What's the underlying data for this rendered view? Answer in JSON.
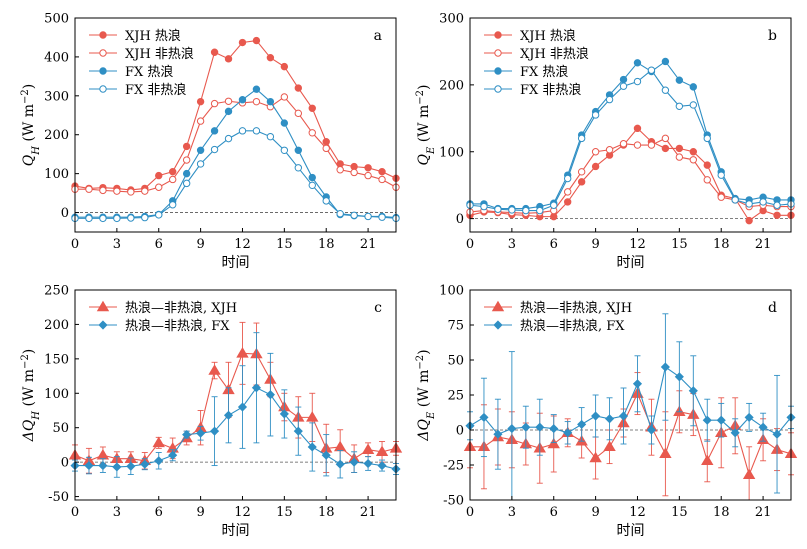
{
  "colors": {
    "xjh": "#e8594e",
    "fx": "#2f8fc4",
    "zero_line": "#555555"
  },
  "chart_data": [
    {
      "panel": "a",
      "type": "line",
      "ylabel_main": "Q",
      "ylabel_sub": "H",
      "ylabel_unit": " (W m",
      "ylabel_exp": "−2",
      "ylabel_close": ")",
      "xlabel": "时间",
      "xlim": [
        0,
        23
      ],
      "ylim": [
        -50,
        500
      ],
      "xticks": [
        0,
        3,
        6,
        9,
        12,
        15,
        18,
        21
      ],
      "yticks": [
        0,
        100,
        200,
        300,
        400,
        500
      ],
      "legend": "top-left",
      "x": [
        0,
        1,
        2,
        3,
        4,
        5,
        6,
        7,
        8,
        9,
        10,
        11,
        12,
        13,
        14,
        15,
        16,
        17,
        18,
        19,
        20,
        21,
        22,
        23
      ],
      "series": [
        {
          "name": "XJH 热浪",
          "color": "xjh",
          "marker": "filled-circle",
          "values": [
            68,
            62,
            64,
            62,
            58,
            62,
            95,
            105,
            170,
            285,
            412,
            395,
            437,
            442,
            398,
            375,
            320,
            268,
            182,
            125,
            118,
            115,
            105,
            88
          ]
        },
        {
          "name": "XJH 非热浪",
          "color": "xjh",
          "marker": "open-circle",
          "values": [
            60,
            60,
            57,
            55,
            53,
            55,
            65,
            85,
            135,
            235,
            280,
            286,
            282,
            285,
            272,
            297,
            255,
            205,
            165,
            110,
            103,
            95,
            85,
            65
          ]
        },
        {
          "name": "FX 热浪",
          "color": "fx",
          "marker": "filled-circle",
          "values": [
            -12,
            -12,
            -12,
            -12,
            -12,
            -10,
            -5,
            30,
            100,
            160,
            210,
            260,
            290,
            317,
            285,
            230,
            160,
            90,
            40,
            -5,
            -8,
            -10,
            -10,
            -13
          ]
        },
        {
          "name": "FX 非热浪",
          "color": "fx",
          "marker": "open-circle",
          "values": [
            -15,
            -15,
            -15,
            -15,
            -14,
            -13,
            -6,
            20,
            75,
            125,
            162,
            190,
            210,
            210,
            195,
            160,
            115,
            70,
            30,
            -3,
            -7,
            -10,
            -12,
            -15
          ]
        }
      ]
    },
    {
      "panel": "b",
      "type": "line",
      "ylabel_main": "Q",
      "ylabel_sub": "E",
      "ylabel_unit": " (W m",
      "ylabel_exp": "−2",
      "ylabel_close": ")",
      "xlabel": "时间",
      "xlim": [
        0,
        23
      ],
      "ylim": [
        -20,
        300
      ],
      "xticks": [
        0,
        3,
        6,
        9,
        12,
        15,
        18,
        21
      ],
      "yticks": [
        0,
        100,
        200,
        300
      ],
      "legend": "top-left",
      "x": [
        0,
        1,
        2,
        3,
        4,
        5,
        6,
        7,
        8,
        9,
        10,
        11,
        12,
        13,
        14,
        15,
        16,
        17,
        18,
        19,
        20,
        21,
        22,
        23
      ],
      "series": [
        {
          "name": "XJH 热浪",
          "color": "xjh",
          "marker": "filled-circle",
          "values": [
            5,
            10,
            9,
            6,
            5,
            3,
            3,
            25,
            55,
            78,
            95,
            110,
            135,
            115,
            105,
            105,
            100,
            80,
            35,
            30,
            -3,
            12,
            5,
            5
          ]
        },
        {
          "name": "XJH 非热浪",
          "color": "xjh",
          "marker": "open-circle",
          "values": [
            10,
            12,
            10,
            9,
            8,
            9,
            12,
            40,
            70,
            100,
            103,
            112,
            110,
            110,
            120,
            92,
            88,
            58,
            32,
            28,
            18,
            20,
            18,
            18
          ]
        },
        {
          "name": "FX 热浪",
          "color": "fx",
          "marker": "filled-circle",
          "values": [
            22,
            22,
            15,
            15,
            15,
            18,
            23,
            65,
            125,
            160,
            185,
            208,
            233,
            220,
            235,
            207,
            197,
            125,
            70,
            30,
            28,
            32,
            28,
            28
          ]
        },
        {
          "name": "FX 非热浪",
          "color": "fx",
          "marker": "open-circle",
          "values": [
            20,
            18,
            14,
            13,
            12,
            12,
            20,
            60,
            120,
            155,
            178,
            198,
            205,
            222,
            192,
            168,
            170,
            120,
            65,
            28,
            22,
            25,
            20,
            22
          ]
        }
      ]
    },
    {
      "panel": "c",
      "type": "line",
      "ylabel_main": "ΔQ",
      "ylabel_sub": "H",
      "ylabel_unit": " (W m",
      "ylabel_exp": "−2",
      "ylabel_close": ")",
      "xlabel": "时间",
      "xlim": [
        0,
        23
      ],
      "ylim": [
        -55,
        250
      ],
      "xticks": [
        0,
        3,
        6,
        9,
        12,
        15,
        18,
        21
      ],
      "yticks": [
        -50,
        0,
        50,
        100,
        150,
        200,
        250
      ],
      "legend": "top-left",
      "x": [
        0,
        1,
        2,
        3,
        4,
        5,
        6,
        7,
        8,
        9,
        10,
        11,
        12,
        13,
        14,
        15,
        16,
        17,
        18,
        19,
        20,
        21,
        22,
        23
      ],
      "series": [
        {
          "name": "热浪—非热浪, XJH",
          "color": "xjh",
          "marker": "triangle",
          "values": [
            10,
            2,
            10,
            5,
            5,
            2,
            28,
            20,
            35,
            50,
            133,
            105,
            158,
            157,
            120,
            80,
            65,
            65,
            20,
            22,
            5,
            18,
            15,
            20
          ],
          "errors": [
            15,
            18,
            12,
            10,
            10,
            12,
            8,
            15,
            10,
            25,
            12,
            40,
            45,
            45,
            25,
            20,
            30,
            35,
            35,
            25,
            20,
            10,
            15,
            10
          ]
        },
        {
          "name": "热浪—非热浪, FX",
          "color": "fx",
          "marker": "diamond",
          "values": [
            -5,
            -5,
            -5,
            -7,
            -6,
            -3,
            2,
            10,
            40,
            42,
            45,
            68,
            80,
            108,
            98,
            70,
            45,
            22,
            10,
            -3,
            0,
            -2,
            -5,
            -10
          ],
          "errors": [
            8,
            12,
            10,
            15,
            12,
            8,
            12,
            8,
            5,
            10,
            50,
            40,
            60,
            80,
            60,
            35,
            35,
            35,
            30,
            20,
            15,
            10,
            8,
            8
          ]
        }
      ]
    },
    {
      "panel": "d",
      "type": "line",
      "ylabel_main": "ΔQ",
      "ylabel_sub": "E",
      "ylabel_unit": " (W m",
      "ylabel_exp": "−2",
      "ylabel_close": ")",
      "xlabel": "时间",
      "xlim": [
        0,
        23
      ],
      "ylim": [
        -50,
        100
      ],
      "xticks": [
        0,
        3,
        6,
        9,
        12,
        15,
        18,
        21
      ],
      "yticks": [
        -50,
        -25,
        0,
        25,
        50,
        75,
        100
      ],
      "legend": "top-left",
      "x": [
        0,
        1,
        2,
        3,
        4,
        5,
        6,
        7,
        8,
        9,
        10,
        11,
        12,
        13,
        14,
        15,
        16,
        17,
        18,
        19,
        20,
        21,
        22,
        23
      ],
      "series": [
        {
          "name": "热浪—非热浪, XJH",
          "color": "xjh",
          "marker": "triangle",
          "values": [
            -12,
            -12,
            -5,
            -7,
            -10,
            -13,
            -10,
            -2,
            -8,
            -20,
            -12,
            5,
            26,
            2,
            -17,
            13,
            11,
            -22,
            -2,
            3,
            -32,
            -7,
            -14,
            -17
          ],
          "errors": [
            15,
            30,
            20,
            20,
            15,
            25,
            20,
            10,
            12,
            15,
            12,
            10,
            15,
            20,
            30,
            15,
            15,
            15,
            25,
            20,
            20,
            15,
            15,
            15
          ]
        },
        {
          "name": "热浪—非热浪, FX",
          "color": "fx",
          "marker": "diamond",
          "values": [
            3,
            9,
            -3,
            1,
            2,
            2,
            1,
            -2,
            4,
            10,
            8,
            10,
            33,
            0,
            45,
            38,
            28,
            7,
            7,
            -2,
            9,
            2,
            -3,
            9
          ],
          "errors": [
            10,
            28,
            25,
            55,
            15,
            20,
            10,
            8,
            12,
            15,
            15,
            20,
            20,
            10,
            38,
            25,
            25,
            15,
            12,
            10,
            10,
            10,
            42,
            8
          ]
        }
      ]
    }
  ]
}
